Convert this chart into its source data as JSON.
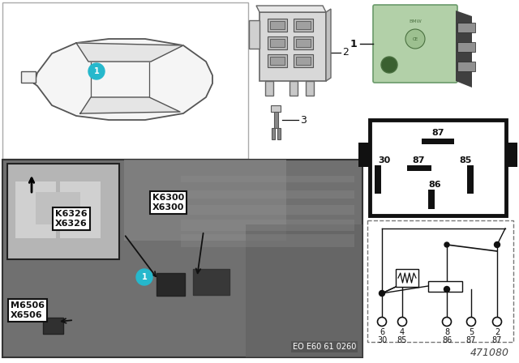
{
  "bg_color": "#ffffff",
  "diagram_number": "471080",
  "eo_text": "EO E60 61 0260",
  "relay_green": "#b2d0a8",
  "relay_dark_green": "#6a9a6a",
  "car_line_color": "#555555",
  "car_fill": "#f8f8f8",
  "photo_bg": "#808080",
  "photo_edge": "#333333",
  "inset_bg": "#c0c0c0",
  "label_bg": "#ffffff",
  "label_edge": "#111111",
  "circle_bg": "#26b8cc",
  "circle_text": "#ffffff",
  "black": "#111111",
  "dark_gray": "#555555",
  "mid_gray": "#888888",
  "light_gray": "#cccccc",
  "pin_row1": [
    "6",
    "4",
    "8",
    "5",
    "2"
  ],
  "pin_row2": [
    "30",
    "85",
    "86",
    "87",
    "87"
  ],
  "item2_label": "2",
  "item3_label": "3",
  "item1_label": "1"
}
